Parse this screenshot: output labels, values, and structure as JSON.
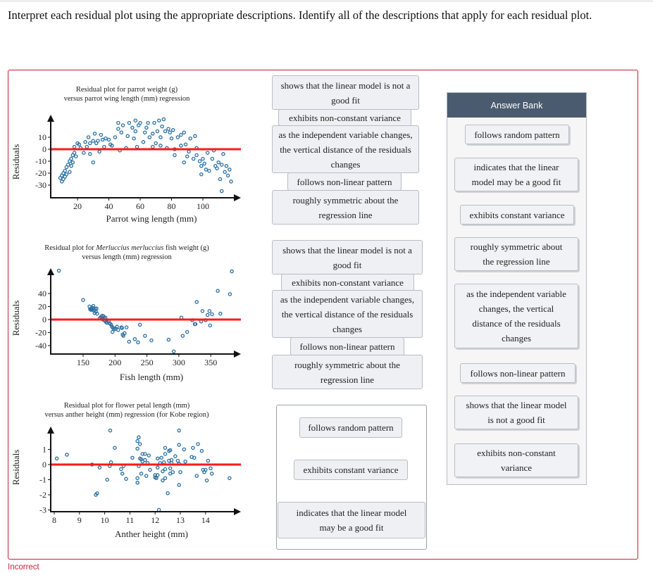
{
  "prompt": "Interpret each residual plot using the appropriate descriptions. Identify all of the descriptions that apply for each residual plot.",
  "status": "Incorrect",
  "colors": {
    "accent_red": "#c8203a",
    "reference_line": "#ff1a1a",
    "points": "#2a6fa0",
    "bank_header": "#4a5b70"
  },
  "drop_zones": [
    {
      "items": [
        "shows that the linear model is not a good fit",
        "exhibits non-constant variance",
        "as the independent variable changes, the vertical distance of the residuals changes",
        "follows non-linear pattern",
        "roughly symmetric about the regression line"
      ]
    },
    {
      "items": [
        "shows that the linear model is not a good fit",
        "exhibits non-constant variance",
        "as the independent variable changes, the vertical distance of the residuals changes",
        "follows non-linear pattern",
        "roughly symmetric about the regression line"
      ]
    },
    {
      "items": [
        "follows random pattern",
        "exhibits constant variance",
        "indicates that the linear model may be a good fit"
      ]
    }
  ],
  "answer_bank": {
    "title": "Answer Bank",
    "items": [
      "follows random pattern",
      "indicates that the linear model may be a good fit",
      "exhibits constant variance",
      "roughly symmetric about the regression line",
      "as the independent variable changes, the vertical distance of the residuals changes",
      "follows non-linear pattern",
      "shows that the linear model is not a good fit",
      "exhibits non-constant variance"
    ]
  },
  "chart_data": [
    {
      "type": "scatter",
      "title_line1": "Residual plot for parrot weight (g)",
      "title_line2": "versus parrot wing length (mm) regression",
      "xlabel": "Parrot wing length (mm)",
      "ylabel": "Residuals",
      "xticks": [
        20,
        40,
        60,
        80,
        100
      ],
      "yticks": [
        10,
        0,
        -10,
        -20,
        -30
      ],
      "reference_line_y": 0,
      "points": [
        [
          9,
          -24
        ],
        [
          10,
          -27
        ],
        [
          10,
          -22
        ],
        [
          11,
          -20
        ],
        [
          11,
          -25
        ],
        [
          12,
          -18
        ],
        [
          12,
          -23
        ],
        [
          13,
          -15
        ],
        [
          13,
          -21
        ],
        [
          14,
          -13
        ],
        [
          15,
          -19
        ],
        [
          15,
          -10
        ],
        [
          16,
          -8
        ],
        [
          16,
          -14
        ],
        [
          17,
          -5
        ],
        [
          17,
          -11
        ],
        [
          18,
          -3
        ],
        [
          18,
          2
        ],
        [
          19,
          -6
        ],
        [
          20,
          5
        ],
        [
          21,
          4
        ],
        [
          22,
          1
        ],
        [
          24,
          -3
        ],
        [
          25,
          6
        ],
        [
          26,
          2
        ],
        [
          27,
          10
        ],
        [
          28,
          -4
        ],
        [
          28,
          5
        ],
        [
          30,
          -11
        ],
        [
          30,
          7
        ],
        [
          31,
          13
        ],
        [
          32,
          5
        ],
        [
          33,
          7
        ],
        [
          34,
          -2
        ],
        [
          35,
          12
        ],
        [
          36,
          8
        ],
        [
          37,
          2
        ],
        [
          38,
          9
        ],
        [
          40,
          8
        ],
        [
          41,
          4
        ],
        [
          42,
          3
        ],
        [
          44,
          10
        ],
        [
          46,
          17
        ],
        [
          46,
          22
        ],
        [
          47,
          -1
        ],
        [
          48,
          14
        ],
        [
          49,
          20
        ],
        [
          51,
          1
        ],
        [
          52,
          11
        ],
        [
          53,
          22
        ],
        [
          55,
          18
        ],
        [
          56,
          9
        ],
        [
          57,
          24
        ],
        [
          57,
          15
        ],
        [
          58,
          2
        ],
        [
          59,
          20
        ],
        [
          60,
          22
        ],
        [
          62,
          6
        ],
        [
          63,
          14
        ],
        [
          64,
          18
        ],
        [
          65,
          22
        ],
        [
          66,
          10
        ],
        [
          68,
          2
        ],
        [
          68,
          13
        ],
        [
          69,
          22
        ],
        [
          70,
          5
        ],
        [
          71,
          15
        ],
        [
          72,
          24
        ],
        [
          73,
          3
        ],
        [
          73,
          10
        ],
        [
          74,
          19
        ],
        [
          75,
          25
        ],
        [
          76,
          15
        ],
        [
          77,
          1
        ],
        [
          78,
          17
        ],
        [
          79,
          14
        ],
        [
          80,
          9
        ],
        [
          81,
          16
        ],
        [
          82,
          -5
        ],
        [
          82,
          0
        ],
        [
          84,
          10
        ],
        [
          86,
          3
        ],
        [
          86,
          12
        ],
        [
          88,
          -11
        ],
        [
          88,
          14
        ],
        [
          89,
          4
        ],
        [
          90,
          -6
        ],
        [
          91,
          -2
        ],
        [
          92,
          9
        ],
        [
          94,
          -8
        ],
        [
          95,
          11
        ],
        [
          96,
          1
        ],
        [
          96,
          -5
        ],
        [
          98,
          -10
        ],
        [
          99,
          -21
        ],
        [
          99,
          -14
        ],
        [
          100,
          -8
        ],
        [
          101,
          -12
        ],
        [
          102,
          -17
        ],
        [
          103,
          -3
        ],
        [
          104,
          -18
        ],
        [
          106,
          -8
        ],
        [
          107,
          -1
        ],
        [
          108,
          -14
        ],
        [
          109,
          -16
        ],
        [
          110,
          -11
        ],
        [
          111,
          -25
        ],
        [
          112,
          -35
        ],
        [
          112,
          -13
        ],
        [
          113,
          -4
        ],
        [
          114,
          -19
        ],
        [
          115,
          -14
        ],
        [
          116,
          -22
        ],
        [
          117,
          -17
        ],
        [
          118,
          -27
        ]
      ]
    },
    {
      "type": "scatter",
      "title_line1_pre": "Residual plot for ",
      "title_line1_italic": "Merluccius merluccius",
      "title_line1_post": " fish weight (g)",
      "title_line2": "versus length (mm) regression",
      "xlabel": "Fish length (mm)",
      "ylabel": "Residuals",
      "xticks": [
        150,
        200,
        250,
        300,
        350
      ],
      "yticks": [
        40,
        20,
        0,
        -20,
        -40
      ],
      "reference_line_y": 0,
      "points": [
        [
          112,
          75
        ],
        [
          150,
          30
        ],
        [
          160,
          20
        ],
        [
          161,
          16
        ],
        [
          162,
          15
        ],
        [
          163,
          17
        ],
        [
          164,
          15
        ],
        [
          165,
          18
        ],
        [
          166,
          21
        ],
        [
          167,
          14
        ],
        [
          168,
          10
        ],
        [
          169,
          16
        ],
        [
          170,
          12
        ],
        [
          171,
          17
        ],
        [
          172,
          9
        ],
        [
          176,
          2
        ],
        [
          178,
          4
        ],
        [
          180,
          6
        ],
        [
          181,
          0
        ],
        [
          182,
          5
        ],
        [
          183,
          2
        ],
        [
          184,
          -2
        ],
        [
          185,
          3
        ],
        [
          186,
          -4
        ],
        [
          187,
          -1
        ],
        [
          188,
          -5
        ],
        [
          190,
          -3
        ],
        [
          192,
          -6
        ],
        [
          194,
          -8
        ],
        [
          195,
          -11
        ],
        [
          196,
          -19
        ],
        [
          197,
          -13
        ],
        [
          199,
          -15
        ],
        [
          201,
          -14
        ],
        [
          203,
          -11
        ],
        [
          205,
          -16
        ],
        [
          210,
          -12
        ],
        [
          211,
          -13
        ],
        [
          212,
          -23
        ],
        [
          213,
          -25
        ],
        [
          215,
          -21
        ],
        [
          218,
          -12
        ],
        [
          222,
          -34
        ],
        [
          231,
          -30
        ],
        [
          236,
          -35
        ],
        [
          239,
          -8
        ],
        [
          247,
          -25
        ],
        [
          257,
          -32
        ],
        [
          284,
          -31
        ],
        [
          292,
          -49
        ],
        [
          304,
          3
        ],
        [
          306,
          -25
        ],
        [
          313,
          -19
        ],
        [
          321,
          -1
        ],
        [
          325,
          -7
        ],
        [
          326,
          -7
        ],
        [
          328,
          27
        ],
        [
          335,
          -3
        ],
        [
          337,
          13
        ],
        [
          342,
          -1
        ],
        [
          345,
          7
        ],
        [
          348,
          13
        ],
        [
          349,
          -9
        ],
        [
          352,
          8
        ],
        [
          361,
          44
        ],
        [
          365,
          9
        ],
        [
          380,
          39
        ],
        [
          383,
          74
        ]
      ]
    },
    {
      "type": "scatter",
      "title_line1": "Residual plot for flower petal length (mm)",
      "title_line2": "versus anther height (mm) regression (for Kobe region)",
      "xlabel": "Anther height (mm)",
      "ylabel": "Residuals",
      "xticks": [
        8,
        9,
        10,
        11,
        12,
        13,
        14
      ],
      "yticks": [
        1,
        0,
        -1,
        -2,
        -3
      ],
      "reference_line_y": 0,
      "points": [
        [
          8.1,
          0.4
        ],
        [
          8.5,
          0.65
        ],
        [
          9.5,
          0
        ],
        [
          9.65,
          -2
        ],
        [
          9.7,
          -1.9
        ],
        [
          9.8,
          -0.2
        ],
        [
          10.1,
          -1
        ],
        [
          10.2,
          -0.1
        ],
        [
          10.25,
          0.15
        ],
        [
          10.22,
          2.25
        ],
        [
          10.4,
          1.1
        ],
        [
          10.65,
          -0.3
        ],
        [
          10.7,
          -0.6
        ],
        [
          10.75,
          -0.1
        ],
        [
          10.85,
          -0.95
        ],
        [
          11.1,
          0.45
        ],
        [
          11.3,
          1.05
        ],
        [
          11.3,
          1.55
        ],
        [
          11.3,
          -0.9
        ],
        [
          11.3,
          -1.2
        ],
        [
          11.35,
          1.8
        ],
        [
          11.35,
          -0.1
        ],
        [
          11.4,
          1.35
        ],
        [
          11.4,
          0.4
        ],
        [
          11.45,
          0.35
        ],
        [
          11.45,
          -0.6
        ],
        [
          11.5,
          0.7
        ],
        [
          11.5,
          0.2
        ],
        [
          11.6,
          0.7
        ],
        [
          11.6,
          0.3
        ],
        [
          11.65,
          -0.75
        ],
        [
          11.7,
          0.1
        ],
        [
          11.75,
          0.6
        ],
        [
          11.8,
          -0.35
        ],
        [
          12.0,
          -0.7
        ],
        [
          12.0,
          -0.85
        ],
        [
          12.05,
          -0.9
        ],
        [
          12.1,
          0.4
        ],
        [
          12.1,
          -0.2
        ],
        [
          12.1,
          -0.7
        ],
        [
          12.15,
          -3
        ],
        [
          12.2,
          0.1
        ],
        [
          12.25,
          0.45
        ],
        [
          12.3,
          -0.45
        ],
        [
          12.3,
          -1.05
        ],
        [
          12.35,
          0.15
        ],
        [
          12.4,
          1.1
        ],
        [
          12.4,
          0.7
        ],
        [
          12.4,
          -0.3
        ],
        [
          12.4,
          -0.9
        ],
        [
          12.5,
          -1.9
        ],
        [
          12.55,
          0.9
        ],
        [
          12.55,
          0.25
        ],
        [
          12.6,
          0.95
        ],
        [
          12.6,
          -0.25
        ],
        [
          12.6,
          -0.6
        ],
        [
          12.65,
          0.3
        ],
        [
          12.65,
          0.1
        ],
        [
          12.7,
          -0.5
        ],
        [
          12.8,
          0.55
        ],
        [
          12.9,
          0.25
        ],
        [
          12.95,
          0.05
        ],
        [
          12.95,
          1.3
        ],
        [
          12.95,
          -1.35
        ],
        [
          12.95,
          2.25
        ],
        [
          13.0,
          -0.5
        ],
        [
          13.15,
          1.0
        ],
        [
          13.2,
          0.2
        ],
        [
          13.45,
          0.5
        ],
        [
          13.5,
          1.1
        ],
        [
          13.55,
          0.45
        ],
        [
          13.65,
          -0.75
        ],
        [
          13.7,
          1.35
        ],
        [
          13.85,
          0.9
        ],
        [
          13.9,
          -0.35
        ],
        [
          13.95,
          -0.5
        ],
        [
          14.0,
          -0.35
        ],
        [
          14.05,
          -1.05
        ],
        [
          14.1,
          0.25
        ],
        [
          14.2,
          -0.25
        ],
        [
          14.25,
          -0.6
        ],
        [
          14.95,
          -0.9
        ]
      ]
    }
  ]
}
